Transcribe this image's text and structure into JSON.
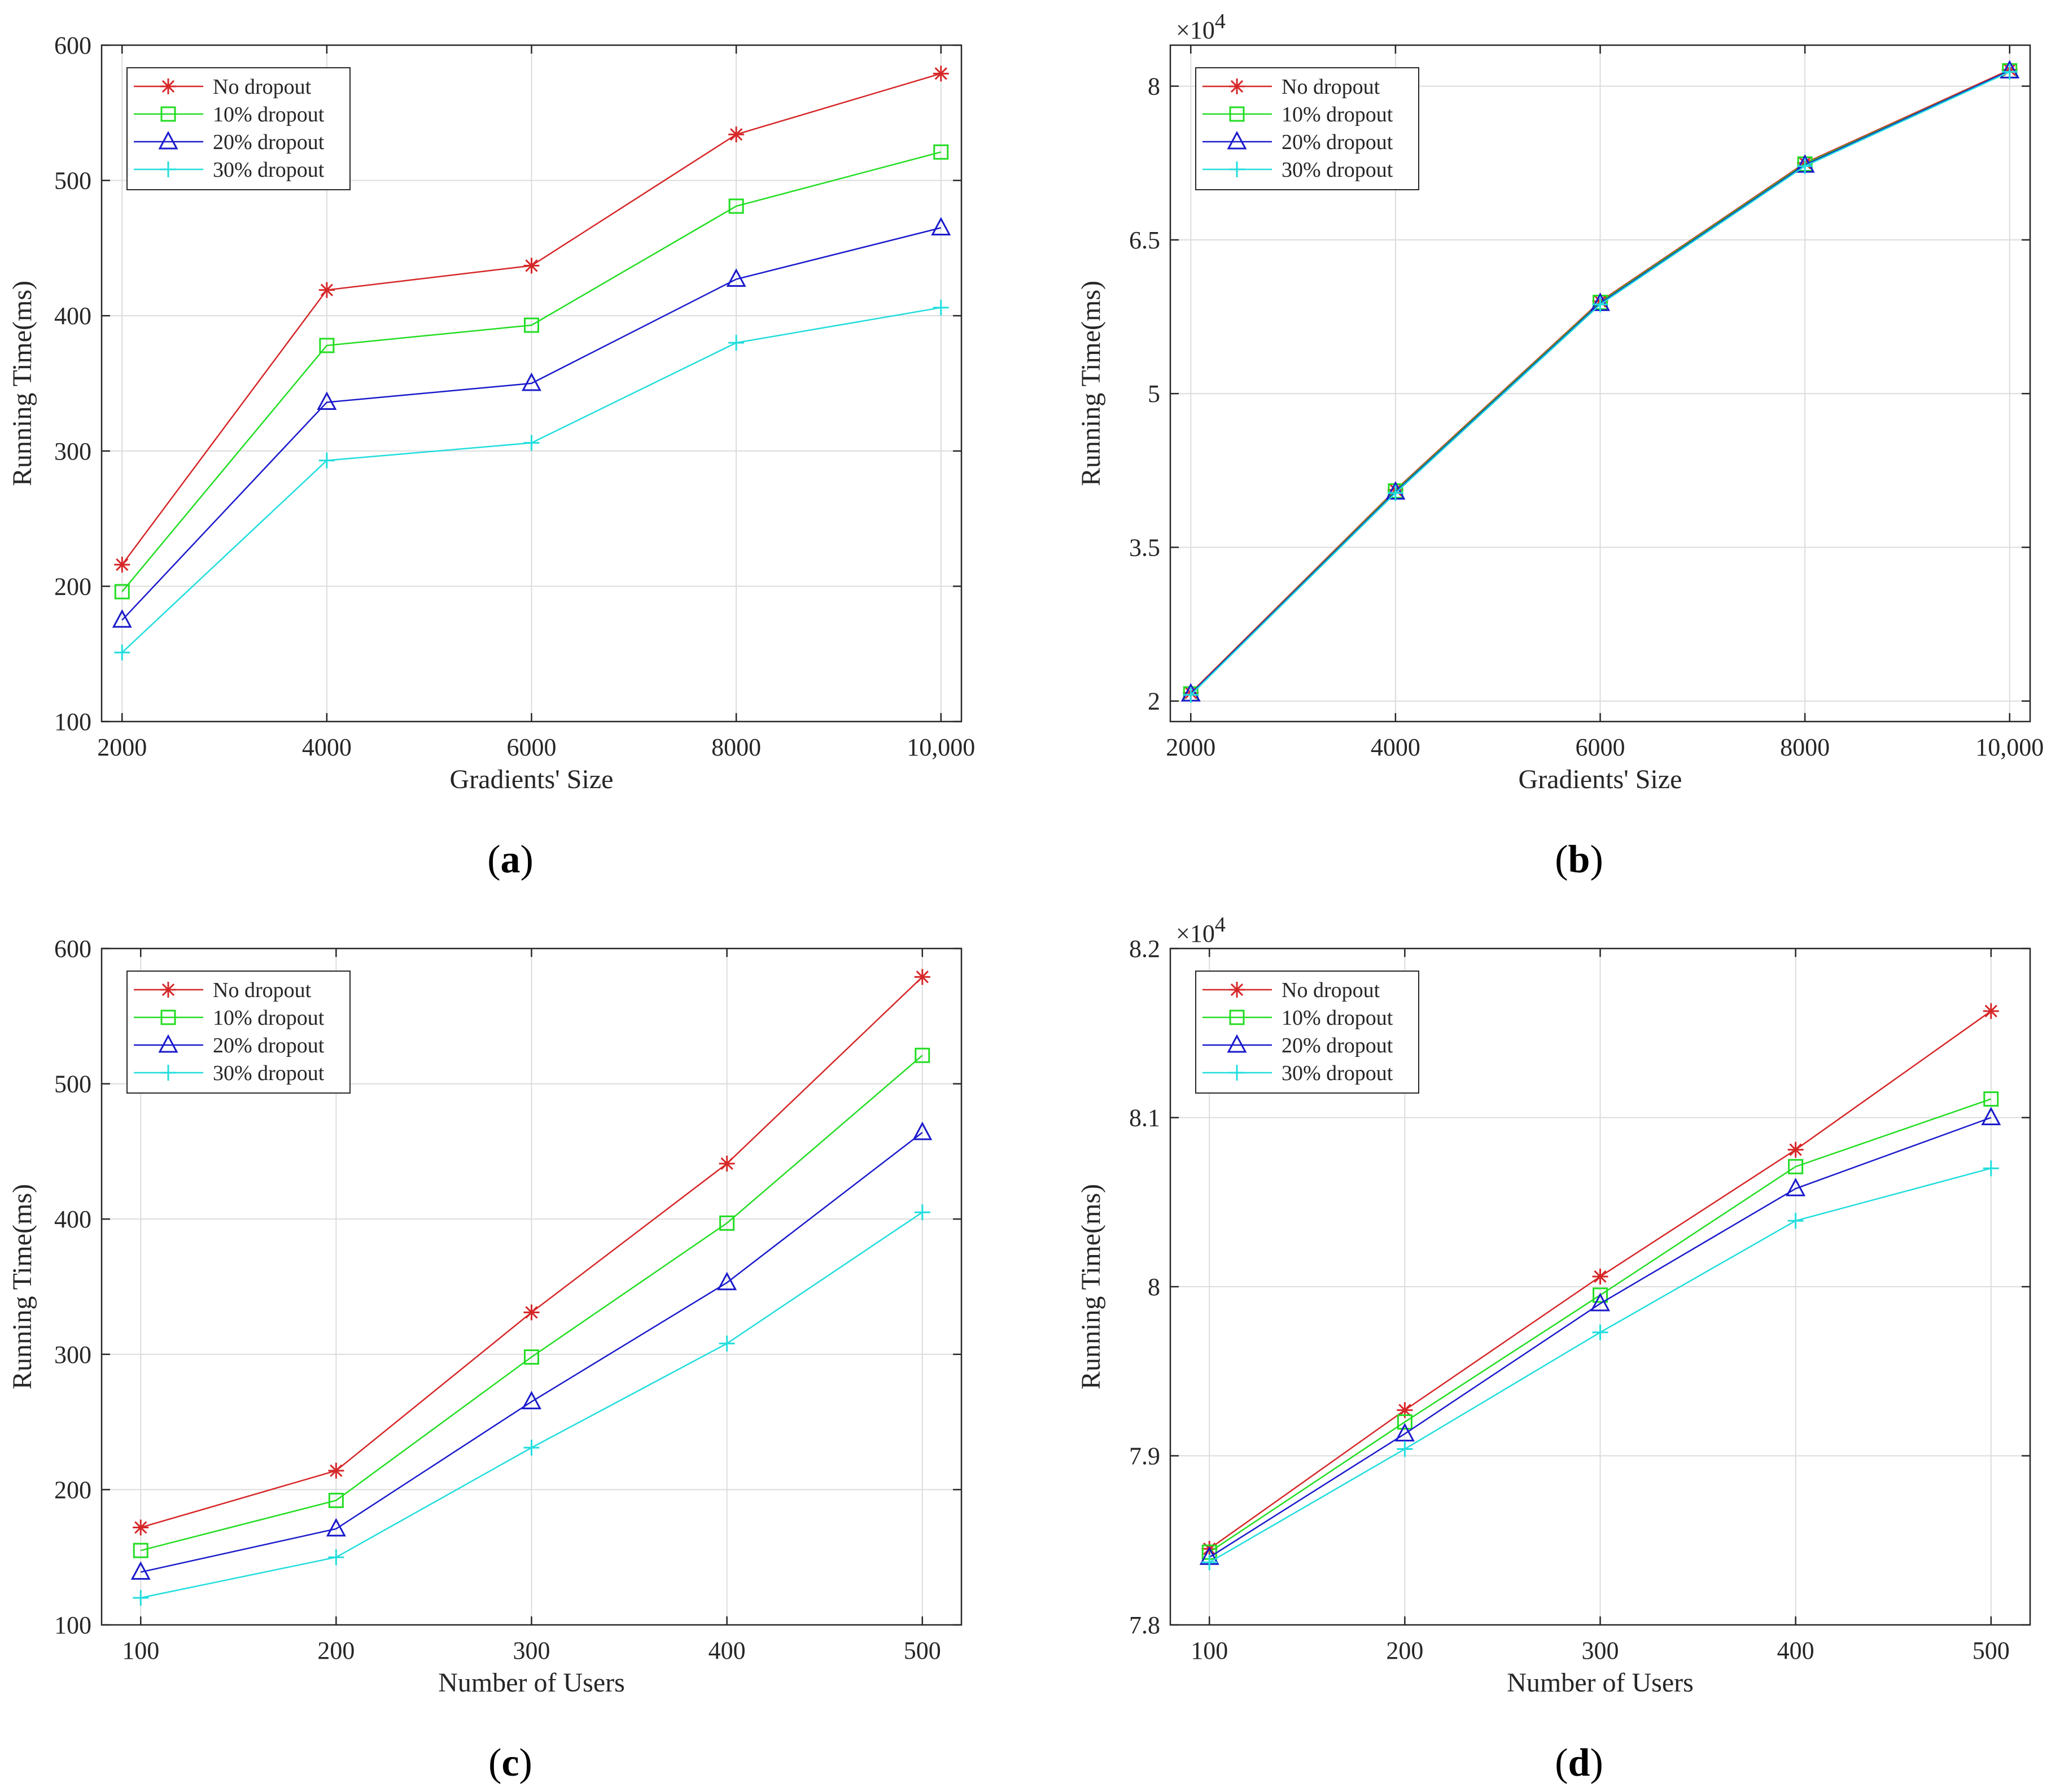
{
  "figure": {
    "captions": [
      "(a)",
      "(b)",
      "(c)",
      "(d)"
    ]
  },
  "colors": {
    "no_dropout": "#d62728",
    "dropout_10": "#22dd22",
    "dropout_20": "#1a1acc",
    "dropout_30": "#22dddd",
    "grid": "#dcdcdc",
    "axis": "#262626"
  },
  "chart_data": [
    {
      "id": "a",
      "type": "line",
      "caption": "(a)",
      "xlabel": "Gradients'  Size",
      "ylabel": "Running Time(ms)",
      "x": [
        2000,
        4000,
        6000,
        8000,
        10000
      ],
      "xtick_labels": [
        "2000",
        "4000",
        "6000",
        "8000",
        "10,000"
      ],
      "xlim": [
        1800,
        10200
      ],
      "ylim": [
        100,
        600
      ],
      "yticks": [
        100,
        200,
        300,
        400,
        500,
        600
      ],
      "ytick_labels": [
        "100",
        "200",
        "300",
        "400",
        "500",
        "600"
      ],
      "exponent_label": "",
      "legend_position": "top-left",
      "grid": true,
      "series": [
        {
          "name": "No dropout",
          "marker": "asterisk",
          "values": [
            216,
            419,
            437,
            534,
            579
          ]
        },
        {
          "name": "10% dropout",
          "marker": "square",
          "values": [
            196,
            378,
            393,
            481,
            521
          ]
        },
        {
          "name": "20% dropout",
          "marker": "triangle",
          "values": [
            175,
            336,
            350,
            427,
            465
          ]
        },
        {
          "name": "30% dropout",
          "marker": "plus",
          "values": [
            151,
            293,
            306,
            380,
            406
          ]
        }
      ]
    },
    {
      "id": "b",
      "type": "line",
      "caption": "(b)",
      "xlabel": "Gradients'  Size",
      "ylabel": "Running Time(ms)",
      "x": [
        2000,
        4000,
        6000,
        8000,
        10000
      ],
      "xtick_labels": [
        "2000",
        "4000",
        "6000",
        "8000",
        "10,000"
      ],
      "xlim": [
        1800,
        10200
      ],
      "ylim": [
        1.8,
        8.4
      ],
      "yticks": [
        2,
        3.5,
        5,
        6.5,
        8
      ],
      "ytick_labels": [
        "2",
        "3.5",
        "5",
        "6.5",
        "8"
      ],
      "exponent_label": "×10",
      "exponent_power": "4",
      "legend_position": "top-left",
      "grid": true,
      "series": [
        {
          "name": "No dropout",
          "marker": "asterisk",
          "values": [
            2.08,
            4.06,
            5.9,
            7.25,
            8.16
          ]
        },
        {
          "name": "10% dropout",
          "marker": "square",
          "values": [
            2.07,
            4.05,
            5.89,
            7.24,
            8.15
          ]
        },
        {
          "name": "20% dropout",
          "marker": "triangle",
          "values": [
            2.07,
            4.04,
            5.88,
            7.23,
            8.15
          ]
        },
        {
          "name": "30% dropout",
          "marker": "plus",
          "values": [
            2.06,
            4.03,
            5.87,
            7.22,
            8.14
          ]
        }
      ]
    },
    {
      "id": "c",
      "type": "line",
      "caption": "(c)",
      "xlabel": "Number of Users",
      "ylabel": "Running Time(ms)",
      "x": [
        100,
        200,
        300,
        400,
        500
      ],
      "xtick_labels": [
        "100",
        "200",
        "300",
        "400",
        "500"
      ],
      "xlim": [
        80,
        520
      ],
      "ylim": [
        100,
        600
      ],
      "yticks": [
        100,
        200,
        300,
        400,
        500,
        600
      ],
      "ytick_labels": [
        "100",
        "200",
        "300",
        "400",
        "500",
        "600"
      ],
      "exponent_label": "",
      "legend_position": "top-left",
      "grid": true,
      "series": [
        {
          "name": "No dropout",
          "marker": "asterisk",
          "values": [
            172,
            214,
            331,
            441,
            579
          ]
        },
        {
          "name": "10% dropout",
          "marker": "square",
          "values": [
            155,
            192,
            298,
            397,
            521
          ]
        },
        {
          "name": "20% dropout",
          "marker": "triangle",
          "values": [
            139,
            171,
            265,
            353,
            464
          ]
        },
        {
          "name": "30% dropout",
          "marker": "plus",
          "values": [
            120,
            150,
            231,
            308,
            405
          ]
        }
      ]
    },
    {
      "id": "d",
      "type": "line",
      "caption": "(d)",
      "xlabel": "Number of Users",
      "ylabel": "Running Time(ms)",
      "x": [
        100,
        200,
        300,
        400,
        500
      ],
      "xtick_labels": [
        "100",
        "200",
        "300",
        "400",
        "500"
      ],
      "xlim": [
        80,
        520
      ],
      "ylim": [
        7.8,
        8.2
      ],
      "yticks": [
        7.8,
        7.9,
        8,
        8.1,
        8.2
      ],
      "ytick_labels": [
        "7.8",
        "7.9",
        "8",
        "8.1",
        "8.2"
      ],
      "exponent_label": "×10",
      "exponent_power": "4",
      "legend_position": "top-left",
      "grid": true,
      "series": [
        {
          "name": "No dropout",
          "marker": "asterisk",
          "values": [
            7.845,
            7.927,
            8.006,
            8.081,
            8.163
          ]
        },
        {
          "name": "10% dropout",
          "marker": "square",
          "values": [
            7.843,
            7.92,
            7.995,
            8.071,
            8.111
          ]
        },
        {
          "name": "20% dropout",
          "marker": "triangle",
          "values": [
            7.84,
            7.913,
            7.99,
            8.058,
            8.1
          ]
        },
        {
          "name": "30% dropout",
          "marker": "plus",
          "values": [
            7.837,
            7.904,
            7.973,
            8.039,
            8.07
          ]
        }
      ]
    }
  ]
}
